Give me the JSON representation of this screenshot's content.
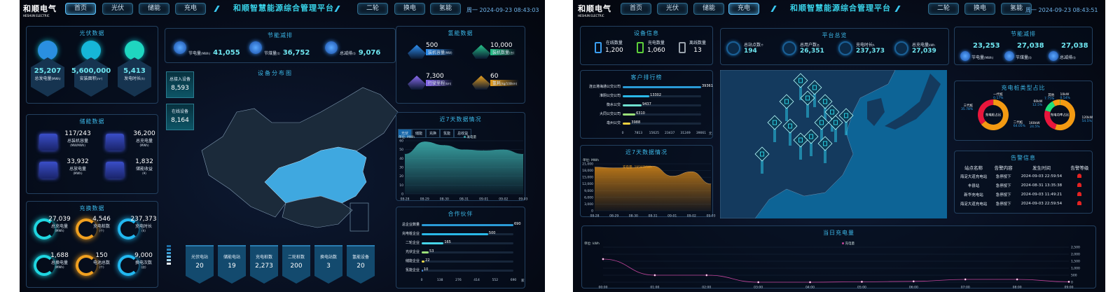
{
  "left": {
    "header": {
      "logo": "和顺电气",
      "logo_sub": "HESHUN ELECTRIC",
      "title": "和顺智慧能源综合管理平台",
      "nav_left": [
        "首页",
        "光伏",
        "储能",
        "充电"
      ],
      "nav_right": [
        "二轮",
        "换电",
        "氢能"
      ],
      "active": "首页",
      "datetime": "周一 2024-09-23 08:43:03"
    },
    "pv": {
      "title": "光伏数据",
      "items": [
        {
          "value": "25,207",
          "label": "总发电量",
          "unit": "(MWh)"
        },
        {
          "value": "5,600,000",
          "label": "安装面积",
          "unit": "(m²)"
        },
        {
          "value": "5,413",
          "label": "发电时长",
          "unit": "(h)"
        }
      ]
    },
    "storage": {
      "title": "储能数据",
      "items": [
        {
          "value": "117/243",
          "label": "总装机容量",
          "unit": "(MW/MWh)"
        },
        {
          "value": "36,200",
          "label": "总充电量",
          "unit": "(MWh)"
        },
        {
          "value": "33,932",
          "label": "总放电量",
          "unit": "(MWh)"
        },
        {
          "value": "1,832",
          "label": "储能收益",
          "unit": "(¥)"
        }
      ]
    },
    "charge": {
      "title": "充换数据",
      "items": [
        {
          "value": "27,039",
          "label": "总充电量",
          "unit": "(MWh)",
          "color": "#1fd6e0"
        },
        {
          "value": "4,546",
          "label": "充电桩数",
          "unit": "(个)",
          "color": "#f0a020"
        },
        {
          "value": "237,373",
          "label": "充电时长",
          "unit": "(h)",
          "color": "#22b8f0"
        },
        {
          "value": "1,688",
          "label": "总换电量",
          "unit": "(MWh)",
          "color": "#1fd6e0"
        },
        {
          "value": "150",
          "label": "电池总数",
          "unit": "(个)",
          "color": "#f0a020"
        },
        {
          "value": "9,000",
          "label": "换电次数",
          "unit": "(次)",
          "color": "#22b8f0"
        }
      ]
    },
    "saving": {
      "title": "节能减排",
      "items": [
        {
          "label": "节电量",
          "unit": "(MWh)",
          "value": "41,055",
          "icon": "lightning-icon"
        },
        {
          "label": "节煤量",
          "unit": "(t)",
          "value": "36,752",
          "icon": "coal-icon"
        },
        {
          "label": "总减排",
          "unit": "(t)",
          "value": "9,076",
          "icon": "cloud-icon"
        }
      ]
    },
    "map": {
      "title": "设备分布图",
      "cards": [
        {
          "label": "总接入设备",
          "value": "8,593"
        },
        {
          "label": "在线设备",
          "value": "8,164"
        }
      ],
      "legend_colors": [
        "#1d6fa8",
        "#2b85c0",
        "#3ba0d8",
        "#5fb8e6",
        "#a8d8f0",
        "#e8f4fb"
      ]
    },
    "tiles": [
      {
        "label": "光伏电站",
        "value": "20"
      },
      {
        "label": "储能电站",
        "value": "19"
      },
      {
        "label": "充电桩数",
        "value": "2,273"
      },
      {
        "label": "二轮桩数",
        "value": "200"
      },
      {
        "label": "换电站数",
        "value": "3"
      },
      {
        "label": "氢能设备",
        "value": "20"
      }
    ],
    "hydrogen": {
      "title": "氢能数据",
      "items": [
        {
          "value": "500",
          "label": "装机容量",
          "unit": "(MW)",
          "color": "#2e8ff0"
        },
        {
          "value": "10,000",
          "label": "装机数量",
          "unit": "(台)",
          "color": "#27c48a"
        },
        {
          "value": "7,300",
          "label": "行驶里程",
          "unit": "(km)",
          "color": "#8a6cf0"
        },
        {
          "value": "60",
          "label": "氢耗",
          "unit": "(kg/100km)",
          "color": "#e8a020"
        }
      ]
    },
    "week": {
      "title": "近7天数据情况",
      "tabs": [
        "光伏",
        "储能",
        "充换",
        "氢能",
        "总收益"
      ],
      "active_tab": "光伏"
    },
    "partners": {
      "title": "合作伙伴"
    }
  },
  "right": {
    "header": {
      "logo": "和顺电气",
      "logo_sub": "HESHUN ELECTRIC",
      "title": "和顺智慧能源综合管理平台",
      "nav_left": [
        "首页",
        "光伏",
        "储能",
        "充电"
      ],
      "nav_right": [
        "二轮",
        "换电",
        "氢能"
      ],
      "active": "充电",
      "datetime": "周一 2024-09-23 08:43:51"
    },
    "device": {
      "title": "设备信息",
      "items": [
        {
          "label": "在线数量",
          "value": "1,200",
          "color": "#3a9ef0"
        },
        {
          "label": "充电数量",
          "value": "1,060",
          "color": "#5ccf3a"
        },
        {
          "label": "离线数量",
          "value": "13",
          "color": "#9aa3ad"
        }
      ]
    },
    "overview": {
      "title": "平台总览",
      "items": [
        {
          "label": "总站点数",
          "unit": "个",
          "value": "194"
        },
        {
          "label": "总用户数",
          "unit": "名",
          "value": "26,351"
        },
        {
          "label": "充电时长",
          "unit": "h",
          "value": "237,373"
        },
        {
          "label": "总充电量",
          "unit": "kWh",
          "value": "27,039"
        }
      ]
    },
    "saving": {
      "title": "节能减排",
      "items": [
        {
          "value": "23,253",
          "label": "节电量",
          "unit": "(MWh)"
        },
        {
          "value": "27,038",
          "label": "节煤量",
          "unit": "(t)"
        },
        {
          "value": "27,038",
          "label": "总减排",
          "unit": "(t)"
        }
      ]
    },
    "customers": {
      "title": "客户排行榜"
    },
    "week": {
      "title": "近7天数据情况",
      "tooltip": "充电量: 19587MWh"
    },
    "types": {
      "title": "充电桩类型占比",
      "donuts": [
        {
          "center": "充电桩占比",
          "slices": [
            {
              "name": "一代桩",
              "pct": "0.17%",
              "value": 0.17,
              "color": "#2ec46a"
            },
            {
              "name": "二代桩",
              "pct": "64.05%",
              "value": 64.05,
              "color": "#f39a12"
            },
            {
              "name": "三代桩",
              "pct": "35.78%",
              "value": 35.78,
              "color": "#e8163c"
            }
          ]
        },
        {
          "center": "充电功率占比",
          "slices": [
            {
              "name": "10kW",
              "pct": "0.54%",
              "value": 0.54,
              "color": "#2ec46a"
            },
            {
              "name": "120kW",
              "pct": "54.5%",
              "value": 54.5,
              "color": "#f39a12"
            },
            {
              "name": "160kW",
              "pct": "24.5%",
              "value": 24.5,
              "color": "#e8163c"
            },
            {
              "name": "60kW",
              "pct": "12.5%",
              "value": 12.5,
              "color": "#1fe07a"
            },
            {
              "name": "其他",
              "pct": "7.75%",
              "value": 7.75,
              "color": "#f39a12"
            }
          ]
        }
      ]
    },
    "alarms": {
      "title": "告警信息",
      "columns": [
        "站点名称",
        "告警内容",
        "发生时间",
        "告警等级"
      ],
      "rows": [
        [
          "海淀大道充电站",
          "急停按下",
          "2024-09-03 22:59:54"
        ],
        [
          "丰县站",
          "急停按下",
          "2024-08-31 13:35:38"
        ],
        [
          "新华充电站",
          "急停按下",
          "2024-09-03 11:49:21"
        ],
        [
          "海淀大道充电站",
          "急停按下",
          "2024-09-03 22:59:54"
        ]
      ]
    },
    "daily": {
      "title": "当日充电量"
    }
  },
  "chart_data": [
    {
      "type": "area",
      "title": "近7天数据情况",
      "unit_label": "单位: MWh",
      "series": [
        {
          "name": "发电量",
          "values": [
            45,
            59,
            55,
            50,
            49,
            50,
            45
          ]
        }
      ],
      "categories": [
        "08-28",
        "08-29",
        "08-30",
        "08-31",
        "09-01",
        "09-02",
        "09-03"
      ],
      "ylim": [
        0,
        60
      ],
      "yticks": [
        0,
        10,
        20,
        30,
        40,
        50,
        60
      ],
      "color": "#3aa6a6"
    },
    {
      "type": "bar",
      "title": "合作伙伴",
      "categories": [
        "总企业数量",
        "充电桩企业",
        "二轮企业",
        "光伏企业",
        "储能企业",
        "氢能企业"
      ],
      "values": [
        690,
        500,
        165,
        53,
        22,
        10
      ],
      "xticks": [
        "0",
        "138",
        "276",
        "414",
        "552",
        "690"
      ],
      "xunit": "家",
      "xlim": [
        0,
        690
      ],
      "colors": [
        "#2a9ad6",
        "#2ab8e8",
        "#46d4e8",
        "#9be07a",
        "#e8d84a",
        "#4a8ad6"
      ]
    },
    {
      "type": "bar",
      "title": "客户排行榜",
      "categories": [
        "连云港海通公交公司",
        "淮阴公交公司",
        "衡水公交",
        "大同公交公司",
        "亳州公交"
      ],
      "values": [
        39361,
        13302,
        9437,
        6310,
        3988
      ],
      "xticks": [
        "0",
        "7813",
        "15625",
        "23437",
        "31249",
        "39061"
      ],
      "xunit": "元",
      "xlim": [
        0,
        39061
      ],
      "colors": [
        "#2a9ad6",
        "#2ab8e8",
        "#6fe0d0",
        "#9be07a",
        "#f0d040"
      ]
    },
    {
      "type": "area",
      "title": "近7天数据情况",
      "unit_label": "单位: MWh",
      "series": [
        {
          "name": "充电量",
          "values": [
            19500,
            19200,
            19300,
            20000,
            15500,
            17500,
            12000
          ]
        }
      ],
      "categories": [
        "08-28",
        "08-29",
        "08-30",
        "08-31",
        "09-01",
        "09-02",
        "09-03"
      ],
      "ylim": [
        0,
        21000
      ],
      "yticks": [
        "0",
        "3,000",
        "6,000",
        "9,000",
        "12,000",
        "15,000",
        "18,000",
        "21,000"
      ],
      "color": "#c07a18"
    },
    {
      "type": "line",
      "title": "当日充电量",
      "unit_label": "单位: kWh",
      "series": [
        {
          "name": "充电量",
          "values": [
            1650,
            500,
            500,
            0,
            0,
            30,
            60,
            200,
            200,
            30
          ]
        }
      ],
      "categories": [
        "00:00",
        "01:00",
        "02:00",
        "03:00",
        "04:00",
        "05:00",
        "06:00",
        "07:00",
        "08:00",
        "09:00"
      ],
      "ylim": [
        0,
        2500
      ],
      "yticks": [
        "0",
        "500",
        "1,000",
        "1,500",
        "2,000",
        "2,500"
      ],
      "color": "#c0449a"
    }
  ]
}
